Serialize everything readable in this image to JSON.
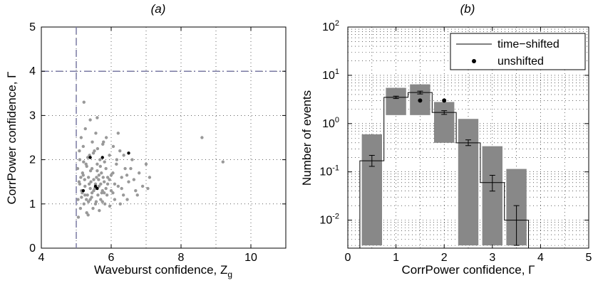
{
  "chart_data": [
    {
      "panel_label": "(a)",
      "type": "scatter",
      "xlabel": "Waveburst confidence, Z",
      "xlabel_sub": "g",
      "ylabel": "CorrPower confidence, Γ",
      "xlim": [
        4,
        11
      ],
      "ylim": [
        0,
        5
      ],
      "xticks": [
        4,
        6,
        8,
        10
      ],
      "yticks": [
        0,
        1,
        2,
        3,
        4,
        5
      ],
      "grid": true,
      "threshold_lines": {
        "x": 5,
        "y": 4,
        "color": "#7a7aa3"
      },
      "series": [
        {
          "color": "#999999",
          "points": [
            [
              5.05,
              1.1
            ],
            [
              5.08,
              1.5
            ],
            [
              5.1,
              2.0
            ],
            [
              5.12,
              0.9
            ],
            [
              5.15,
              1.3
            ],
            [
              5.18,
              1.7
            ],
            [
              5.2,
              2.3
            ],
            [
              5.22,
              1.0
            ],
            [
              5.25,
              1.4
            ],
            [
              5.28,
              1.9
            ],
            [
              5.3,
              0.8
            ],
            [
              5.32,
              1.2
            ],
            [
              5.35,
              1.6
            ],
            [
              5.38,
              2.1
            ],
            [
              5.4,
              1.1
            ],
            [
              5.42,
              1.5
            ],
            [
              5.45,
              1.8
            ],
            [
              5.48,
              0.9
            ],
            [
              5.5,
              1.3
            ],
            [
              5.52,
              2.2
            ],
            [
              5.55,
              1.0
            ],
            [
              5.58,
              1.6
            ],
            [
              5.6,
              1.9
            ],
            [
              5.62,
              1.2
            ],
            [
              5.65,
              1.4
            ],
            [
              5.68,
              2.0
            ],
            [
              5.7,
              1.1
            ],
            [
              5.72,
              1.7
            ],
            [
              5.75,
              1.3
            ],
            [
              5.78,
              2.4
            ],
            [
              5.8,
              1.5
            ],
            [
              5.82,
              1.0
            ],
            [
              5.85,
              1.8
            ],
            [
              5.88,
              1.2
            ],
            [
              5.9,
              1.6
            ],
            [
              5.95,
              2.1
            ],
            [
              6.0,
              1.3
            ],
            [
              6.05,
              1.7
            ],
            [
              6.1,
              1.1
            ],
            [
              6.15,
              1.9
            ],
            [
              6.2,
              1.4
            ],
            [
              6.25,
              2.2
            ],
            [
              6.3,
              1.6
            ],
            [
              6.35,
              1.2
            ],
            [
              6.4,
              1.8
            ],
            [
              6.5,
              1.5
            ],
            [
              6.6,
              2.0
            ],
            [
              6.7,
              1.3
            ],
            [
              6.8,
              1.7
            ],
            [
              6.9,
              1.4
            ],
            [
              7.0,
              1.9
            ],
            [
              7.1,
              1.6
            ],
            [
              5.06,
              0.7
            ],
            [
              5.14,
              2.5
            ],
            [
              5.26,
              2.7
            ],
            [
              5.34,
              0.75
            ],
            [
              5.46,
              2.4
            ],
            [
              5.56,
              2.6
            ],
            [
              5.66,
              0.85
            ],
            [
              5.76,
              2.35
            ],
            [
              5.86,
              2.5
            ],
            [
              5.96,
              0.95
            ],
            [
              6.06,
              2.3
            ],
            [
              6.16,
              2.0
            ],
            [
              6.26,
              1.0
            ],
            [
              6.36,
              2.1
            ],
            [
              6.46,
              1.1
            ],
            [
              6.56,
              1.8
            ],
            [
              5.22,
              3.3
            ],
            [
              5.4,
              2.9
            ],
            [
              5.6,
              2.95
            ],
            [
              6.2,
              2.6
            ],
            [
              8.6,
              2.5
            ],
            [
              9.2,
              1.95
            ],
            [
              5.1,
              1.45
            ],
            [
              5.2,
              1.65
            ],
            [
              5.3,
              1.85
            ],
            [
              5.4,
              1.35
            ],
            [
              5.5,
              1.55
            ],
            [
              5.6,
              1.75
            ],
            [
              5.7,
              1.45
            ],
            [
              5.8,
              1.25
            ],
            [
              5.9,
              1.45
            ],
            [
              6.0,
              1.65
            ],
            [
              6.1,
              1.45
            ],
            [
              5.15,
              1.15
            ],
            [
              5.25,
              1.2
            ],
            [
              5.35,
              1.05
            ],
            [
              5.45,
              1.25
            ],
            [
              5.55,
              1.45
            ],
            [
              5.65,
              1.65
            ],
            [
              5.75,
              1.05
            ],
            [
              5.85,
              1.35
            ],
            [
              5.95,
              1.55
            ],
            [
              6.05,
              1.25
            ],
            [
              6.3,
              1.35
            ],
            [
              6.45,
              1.65
            ],
            [
              6.65,
              1.55
            ],
            [
              6.75,
              1.2
            ],
            [
              7.05,
              1.35
            ],
            [
              5.04,
              1.8
            ],
            [
              5.09,
              2.2
            ],
            [
              5.13,
              1.6
            ],
            [
              5.17,
              1.25
            ],
            [
              5.21,
              1.95
            ],
            [
              5.24,
              1.55
            ],
            [
              5.29,
              1.1
            ],
            [
              5.33,
              2.05
            ],
            [
              5.37,
              1.45
            ],
            [
              5.41,
              1.75
            ],
            [
              5.44,
              1.15
            ],
            [
              5.49,
              2.15
            ],
            [
              5.53,
              1.35
            ],
            [
              5.57,
              1.05
            ],
            [
              5.61,
              2.25
            ],
            [
              5.64,
              1.55
            ],
            [
              5.69,
              1.85
            ],
            [
              5.73,
              1.25
            ],
            [
              5.77,
              1.6
            ],
            [
              5.81,
              1.95
            ]
          ]
        },
        {
          "color": "#000000",
          "points": [
            [
              5.2,
              1.3
            ],
            [
              5.4,
              2.05
            ],
            [
              5.55,
              1.4
            ],
            [
              5.6,
              1.35
            ],
            [
              5.75,
              2.05
            ],
            [
              6.5,
              2.15
            ]
          ]
        }
      ]
    },
    {
      "panel_label": "(b)",
      "type": "bar",
      "xlabel": "CorrPower confidence, Γ",
      "ylabel": "Number of events",
      "xlim": [
        0,
        5
      ],
      "ylim_log10": [
        -2.58,
        2
      ],
      "yscale": "log",
      "xticks": [
        0,
        1,
        2,
        3,
        4,
        5
      ],
      "yticks_exp": [
        -2,
        -1,
        0,
        1,
        2
      ],
      "grid": true,
      "legend": {
        "position": "top-right",
        "entries": [
          {
            "label": "time−shifted",
            "marker": "line"
          },
          {
            "label": "unshifted",
            "marker": "dot"
          }
        ]
      },
      "bar_color": "#888888",
      "bars": [
        {
          "x0": 0.25,
          "x1": 0.75,
          "top": 0.6
        },
        {
          "x0": 0.75,
          "x1": 1.25,
          "top": 5.5
        },
        {
          "x0": 1.25,
          "x1": 1.75,
          "top": 6.5
        },
        {
          "x0": 1.75,
          "x1": 2.25,
          "top": 2.8
        },
        {
          "x0": 2.25,
          "x1": 2.75,
          "top": 1.25
        },
        {
          "x0": 2.75,
          "x1": 3.25,
          "top": 0.34
        },
        {
          "x0": 3.25,
          "x1": 3.75,
          "top": 0.115
        }
      ],
      "bar_bottoms": [
        0.003,
        1.5,
        1.5,
        0.4,
        0.003,
        0.003,
        0.003
      ],
      "time_shifted": {
        "edges": [
          0.25,
          0.75,
          1.25,
          1.75,
          2.25,
          2.75,
          3.25,
          3.75
        ],
        "values": [
          0.17,
          3.5,
          4.4,
          1.7,
          0.4,
          0.06,
          0.01
        ],
        "err_low": [
          0.13,
          3.3,
          4.1,
          1.55,
          0.35,
          0.04,
          0.003
        ],
        "err_high": [
          0.22,
          3.7,
          4.7,
          1.85,
          0.46,
          0.085,
          0.02
        ]
      },
      "unshifted": {
        "x": [
          1.5,
          2.0
        ],
        "y": [
          3.0,
          3.0
        ]
      }
    }
  ]
}
